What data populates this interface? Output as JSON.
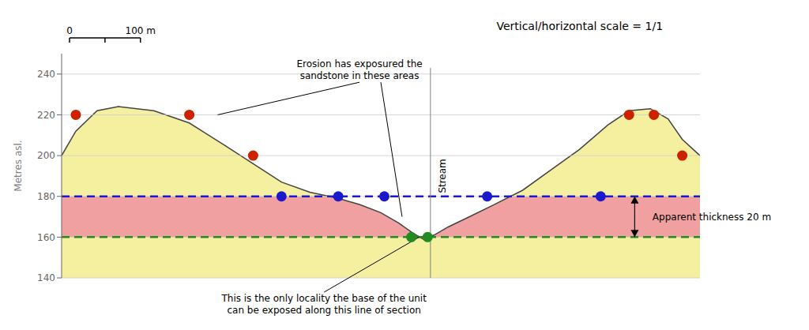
{
  "chart_data": {
    "type": "area",
    "title": "Vertical/horizontal scale = 1/1",
    "ylabel": "Metres asl.",
    "xlim": [
      0,
      900
    ],
    "ylim": [
      140,
      250
    ],
    "yticks": [
      140,
      160,
      180,
      200,
      220,
      240
    ],
    "grid": true,
    "tick_labels": "y",
    "x": [
      0,
      20,
      50,
      80,
      130,
      180,
      230,
      270,
      310,
      350,
      390,
      420,
      450,
      475,
      495,
      510,
      525,
      545,
      575,
      610,
      650,
      690,
      730,
      770,
      800,
      830,
      855,
      875,
      900
    ],
    "values": [
      200,
      212,
      222,
      224,
      222,
      216,
      205,
      196,
      187,
      182,
      179,
      176,
      172,
      167,
      162,
      159,
      161,
      165,
      170,
      176,
      183,
      193,
      203,
      215,
      222,
      223,
      218,
      208,
      200
    ],
    "color": "#f5f0a0",
    "edge_color": "#444444",
    "layer": {
      "bottom": 160,
      "top": 180,
      "color": "#f0a0a0"
    },
    "reference_lines": [
      {
        "y": 180,
        "color": "#1a1acc",
        "line_style": "dashed"
      },
      {
        "y": 160,
        "color": "#228B22",
        "line_style": "dashed"
      }
    ],
    "series": [
      {
        "type": "scatter",
        "x": [
          20,
          180,
          270,
          800,
          835,
          875
        ],
        "values": [
          220,
          220,
          200,
          220,
          220,
          200
        ],
        "color": "#cc2200"
      },
      {
        "type": "scatter",
        "x": [
          310,
          390,
          455,
          600,
          760
        ],
        "values": [
          180,
          180,
          180,
          180,
          180
        ],
        "color": "#1a1acc"
      },
      {
        "type": "scatter",
        "x": [
          493,
          516
        ],
        "values": [
          160,
          160
        ],
        "color": "#228B22"
      }
    ],
    "stream": {
      "x": 520,
      "label": "Stream"
    },
    "annotations": [
      "Erosion has exposured the\nsandstone in these areas",
      "This is the only locality the base of the unit\ncan be exposed along this line of section",
      "Apparent thickness 20 m"
    ],
    "scale_bar": {
      "length": 100,
      "labels": [
        "0",
        "100 m"
      ]
    }
  }
}
